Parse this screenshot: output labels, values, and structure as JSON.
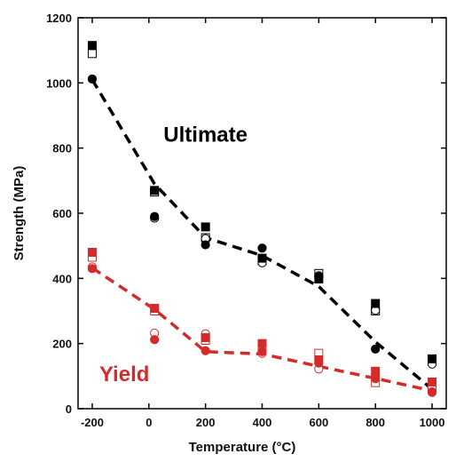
{
  "chart_data": {
    "type": "scatter",
    "title": "",
    "xlabel": "Temperature (°C)",
    "ylabel": "Strength (MPa)",
    "xlim": [
      -250,
      1050
    ],
    "ylim": [
      0,
      1200
    ],
    "xticks": [
      -200,
      0,
      200,
      400,
      600,
      800,
      1000
    ],
    "xtick_labels": [
      "-200",
      "0",
      "200",
      "400",
      "600",
      "800",
      "1000"
    ],
    "yticks": [
      0,
      200,
      400,
      600,
      800,
      1000,
      1200
    ],
    "ytick_labels": [
      "0",
      "200",
      "400",
      "600",
      "800",
      "1000",
      "1200"
    ],
    "grid": false,
    "annotations": [
      {
        "text": "Ultimate",
        "x": 200,
        "y": 820,
        "color": "#000000"
      },
      {
        "text": "Yield",
        "x": -175,
        "y": 85,
        "color": "#d42a2a"
      }
    ],
    "groups": [
      {
        "color": "#000000",
        "points": {
          "filled_square": [
            [
              -200,
              1115
            ],
            [
              20,
              670
            ],
            [
              200,
              558
            ],
            [
              400,
              462
            ],
            [
              600,
              398
            ],
            [
              800,
              323
            ],
            [
              1000,
              153
            ]
          ],
          "open_square": [
            [
              -200,
              1090
            ],
            [
              20,
              665
            ],
            [
              200,
              525
            ],
            [
              400,
              455
            ],
            [
              600,
              415
            ],
            [
              800,
              300
            ],
            [
              1000,
              145
            ]
          ],
          "filled_circle": [
            [
              -200,
              1012
            ],
            [
              20,
              590
            ],
            [
              200,
              503
            ],
            [
              400,
              493
            ],
            [
              600,
              405
            ],
            [
              800,
              183
            ],
            [
              1000,
              70
            ]
          ],
          "open_circle": [
            [
              -200,
              1012
            ],
            [
              20,
              585
            ],
            [
              200,
              522
            ],
            [
              400,
              448
            ],
            [
              600,
              408
            ],
            [
              800,
              302
            ],
            [
              1000,
              137
            ]
          ]
        },
        "trend": [
          [
            -200,
            1010
          ],
          [
            20,
            690
          ],
          [
            200,
            525
          ],
          [
            400,
            470
          ],
          [
            600,
            375
          ],
          [
            800,
            205
          ],
          [
            1000,
            60
          ]
        ]
      },
      {
        "color": "#d42a2a",
        "points": {
          "filled_square": [
            [
              -200,
              480
            ],
            [
              20,
              308
            ],
            [
              200,
              218
            ],
            [
              400,
              200
            ],
            [
              600,
              150
            ],
            [
              800,
              115
            ],
            [
              1000,
              82
            ]
          ],
          "open_square": [
            [
              -200,
              465
            ],
            [
              20,
              300
            ],
            [
              200,
              210
            ],
            [
              400,
              185
            ],
            [
              600,
              170
            ],
            [
              800,
              80
            ],
            [
              1000,
              65
            ]
          ],
          "filled_circle": [
            [
              -200,
              430
            ],
            [
              20,
              212
            ],
            [
              200,
              178
            ],
            [
              400,
              175
            ],
            [
              600,
              140
            ],
            [
              800,
              92
            ],
            [
              1000,
              52
            ]
          ],
          "open_circle": [
            [
              -200,
              435
            ],
            [
              20,
              232
            ],
            [
              200,
              230
            ],
            [
              400,
              170
            ],
            [
              600,
              122
            ],
            [
              800,
              100
            ],
            [
              1000,
              50
            ]
          ]
        },
        "trend": [
          [
            -200,
            432
          ],
          [
            20,
            305
          ],
          [
            200,
            175
          ],
          [
            400,
            168
          ],
          [
            600,
            130
          ],
          [
            800,
            93
          ],
          [
            1000,
            55
          ]
        ]
      }
    ]
  }
}
